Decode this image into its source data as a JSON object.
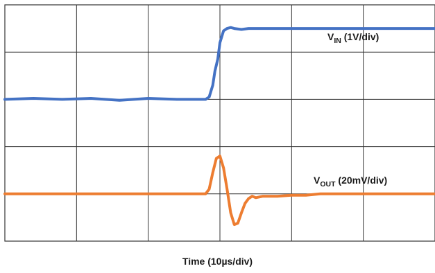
{
  "chart_data": {
    "type": "line",
    "xlabel": "Time (10µs/div)",
    "ylabel": "",
    "grid": true,
    "x_divisions": 6,
    "y_divisions": 5,
    "xlim": [
      0,
      6
    ],
    "ylim": [
      0,
      5
    ],
    "series": [
      {
        "name": "V_IN (1V/div)",
        "label_main": "V",
        "label_sub": "IN",
        "label_rest": " (1V/div)",
        "color": "#4472c4",
        "x": [
          0,
          0.4,
          0.8,
          1.2,
          1.6,
          2.0,
          2.4,
          2.8,
          2.85,
          2.9,
          2.93,
          2.97,
          3.0,
          3.05,
          3.1,
          3.15,
          3.2,
          3.3,
          3.4,
          6.0
        ],
        "y": [
          3.0,
          3.02,
          3.0,
          3.02,
          2.98,
          3.02,
          3.0,
          3.0,
          3.05,
          3.3,
          3.6,
          3.85,
          4.2,
          4.45,
          4.5,
          4.52,
          4.5,
          4.48,
          4.5,
          4.5
        ]
      },
      {
        "name": "V_OUT (20mV/div)",
        "label_main": "V",
        "label_sub": "OUT",
        "label_rest": " (20mV/div)",
        "color": "#ed7d31",
        "x": [
          0,
          2.8,
          2.85,
          2.9,
          2.95,
          3.0,
          3.05,
          3.1,
          3.15,
          3.2,
          3.25,
          3.3,
          3.35,
          3.4,
          3.45,
          3.5,
          3.6,
          3.7,
          3.8,
          4.0,
          4.2,
          4.4,
          6.0
        ],
        "y": [
          1.0,
          1.0,
          1.1,
          1.45,
          1.75,
          1.8,
          1.55,
          1.1,
          0.6,
          0.35,
          0.38,
          0.6,
          0.8,
          0.9,
          0.95,
          0.92,
          0.95,
          0.95,
          0.95,
          0.97,
          0.97,
          1.0,
          1.0
        ]
      }
    ]
  }
}
